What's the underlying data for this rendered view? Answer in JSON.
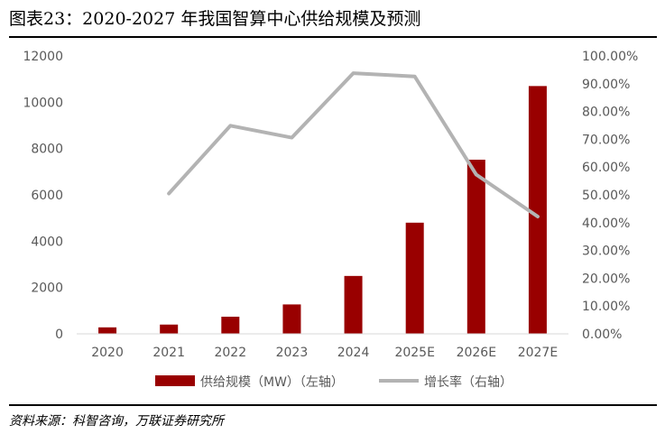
{
  "figure": {
    "title": "图表23：2020-2027 年我国智算中心供给规模及预测",
    "source": "资料来源：科智咨询，万联证券研究所"
  },
  "chart_data": {
    "type": "bar",
    "categories": [
      "2020",
      "2021",
      "2022",
      "2023",
      "2024",
      "2025E",
      "2026E",
      "2027E"
    ],
    "series": [
      {
        "name": "供给规模（MW）（左轴）",
        "type": "bar",
        "axis": "left",
        "color": "#990000",
        "values": [
          280,
          400,
          740,
          1270,
          2500,
          4800,
          7520,
          10700
        ]
      },
      {
        "name": "增长率（右轴）",
        "type": "line",
        "axis": "right",
        "color": "#b3b3b3",
        "values": [
          null,
          50.5,
          74.9,
          70.6,
          93.8,
          92.6,
          57.3,
          42.2
        ]
      }
    ],
    "y_left": {
      "min": 0,
      "max": 12000,
      "ticks": [
        "0",
        "2000",
        "4000",
        "6000",
        "8000",
        "10000",
        "12000"
      ]
    },
    "y_right": {
      "min": 0,
      "max": 100,
      "unit": "%",
      "ticks": [
        "0.00%",
        "10.00%",
        "20.00%",
        "30.00%",
        "40.00%",
        "50.00%",
        "60.00%",
        "70.00%",
        "80.00%",
        "90.00%",
        "100.00%"
      ]
    },
    "legend_position": "bottom",
    "grid": false
  }
}
